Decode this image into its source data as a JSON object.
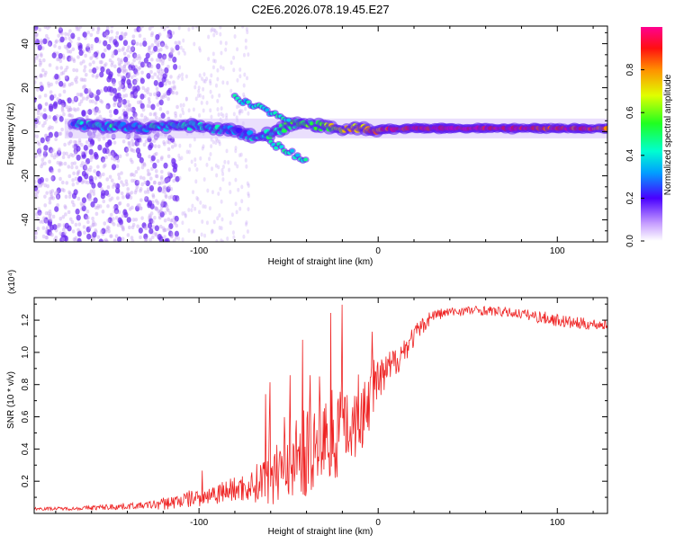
{
  "title": "C2E6.2026.078.19.45.E27",
  "colors": {
    "snr_line": "#ee2222",
    "ridge_low": "#9a5cf0",
    "ridge_mid": "#00d0ff",
    "ridge_high": "#ff1e1e",
    "noise": "#c9a8f5"
  },
  "chart_data": [
    {
      "type": "heatmap",
      "title": "C2E6.2026.078.19.45.E27",
      "xlabel": "Height of straight line (km)",
      "ylabel": "Frequency (Hz)",
      "xlim": [
        -192,
        128
      ],
      "ylim": [
        -50,
        48
      ],
      "x_ticks": [
        -100,
        0,
        100
      ],
      "x_tick_labels": [
        "-100",
        "0",
        "100"
      ],
      "y_ticks": [
        -40,
        -20,
        0,
        20,
        40
      ],
      "y_tick_labels": [
        "-40",
        "-20",
        "0",
        "20",
        "40"
      ],
      "colorbar": {
        "label": "Normalized spectral amplitude",
        "range": [
          0,
          1
        ],
        "ticks": [
          0.0,
          0.2,
          0.4,
          0.6,
          0.8
        ],
        "tick_labels": [
          "0.0",
          "0.2",
          "0.4",
          "0.6",
          "0.8"
        ]
      },
      "ridge": {
        "x": [
          -170,
          -150,
          -130,
          -110,
          -100,
          -90,
          -80,
          -70,
          -60,
          -50,
          -40,
          -30,
          -20,
          -10,
          0,
          20,
          40,
          60,
          80,
          100,
          128
        ],
        "frequency": [
          3,
          2.5,
          2,
          3,
          2,
          1,
          0,
          -2,
          -1,
          3,
          4,
          2,
          1,
          2,
          1,
          1.5,
          1.5,
          1.5,
          1.5,
          1.5,
          1.5
        ],
        "amplitude": [
          0.35,
          0.4,
          0.35,
          0.45,
          0.4,
          0.35,
          0.3,
          0.35,
          0.45,
          0.5,
          0.5,
          0.6,
          0.7,
          0.75,
          0.85,
          0.95,
          0.98,
          0.95,
          0.92,
          0.9,
          0.85
        ]
      },
      "branches": [
        {
          "name": "upper",
          "x": [
            -80,
            -70,
            -60,
            -50
          ],
          "frequency": [
            16,
            12,
            9,
            6
          ]
        },
        {
          "name": "lower",
          "x": [
            -60,
            -50,
            -40
          ],
          "frequency": [
            -5,
            -9,
            -13
          ]
        }
      ]
    },
    {
      "type": "line",
      "xlabel": "Height of straight line (km)",
      "ylabel": "SNR (10 * v/v)",
      "y_multiplier_label": "(x10⁴)",
      "xlim": [
        -192,
        128
      ],
      "ylim": [
        0,
        1.34
      ],
      "x_ticks": [
        -100,
        0,
        100
      ],
      "x_tick_labels": [
        "-100",
        "0",
        "100"
      ],
      "y_ticks": [
        0.2,
        0.4,
        0.6,
        0.8,
        1.0,
        1.2
      ],
      "y_tick_labels": [
        "0.2",
        "0.4",
        "0.6",
        "0.8",
        "1.0",
        "1.2"
      ],
      "series": [
        {
          "name": "SNR",
          "x": [
            -192,
            -170,
            -150,
            -130,
            -120,
            -110,
            -100,
            -90,
            -80,
            -70,
            -60,
            -50,
            -40,
            -30,
            -20,
            -10,
            0,
            10,
            20,
            30,
            40,
            50,
            60,
            70,
            80,
            90,
            100,
            110,
            128
          ],
          "y": [
            0.03,
            0.03,
            0.04,
            0.05,
            0.06,
            0.08,
            0.1,
            0.13,
            0.15,
            0.17,
            0.25,
            0.32,
            0.38,
            0.45,
            0.55,
            0.62,
            0.8,
            0.95,
            1.1,
            1.23,
            1.25,
            1.26,
            1.26,
            1.25,
            1.24,
            1.22,
            1.2,
            1.18,
            1.17
          ],
          "noise": [
            0.01,
            0.01,
            0.02,
            0.02,
            0.04,
            0.05,
            0.06,
            0.07,
            0.08,
            0.1,
            0.2,
            0.25,
            0.28,
            0.3,
            0.3,
            0.3,
            0.15,
            0.1,
            0.07,
            0.04,
            0.03,
            0.03,
            0.03,
            0.03,
            0.03,
            0.04,
            0.04,
            0.04,
            0.03
          ]
        }
      ]
    }
  ]
}
